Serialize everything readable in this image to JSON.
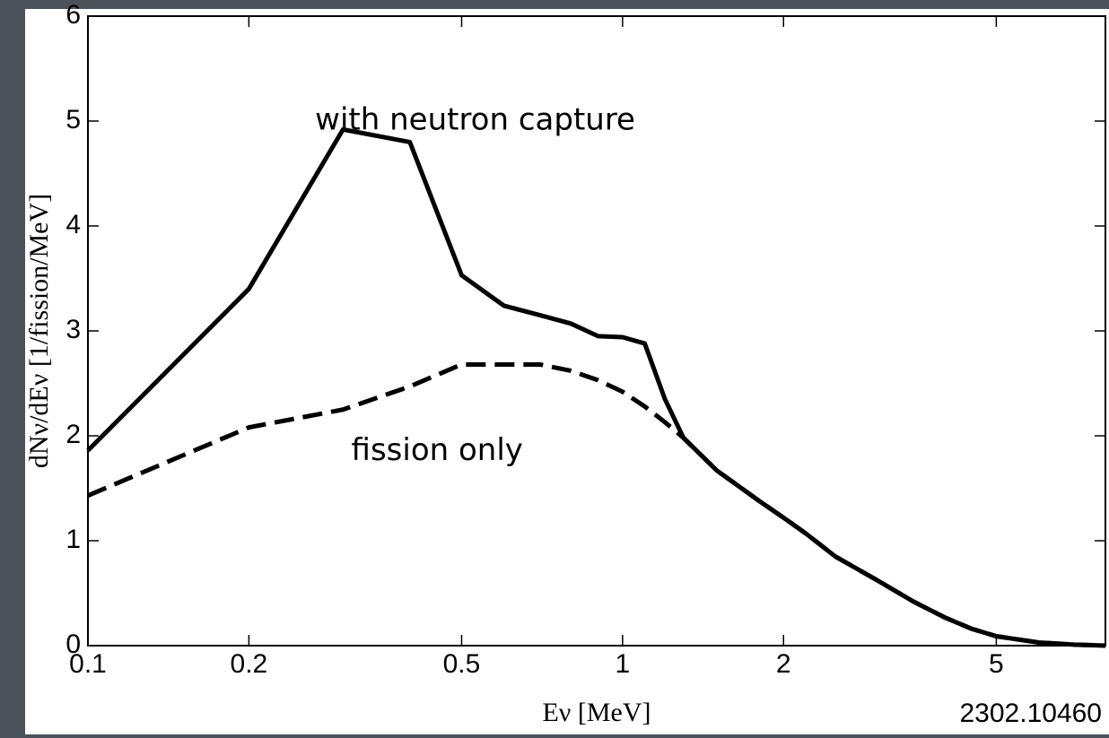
{
  "chart_data": {
    "type": "line",
    "x_label": "Eν [MeV]",
    "y_label": "dNν/dEν [1/fission/MeV]",
    "x": [
      0.1,
      0.2,
      0.3,
      0.4,
      0.5,
      0.6,
      0.7,
      0.8,
      0.9,
      1.0,
      1.1,
      1.2,
      1.3,
      1.5,
      1.8,
      2.0,
      2.2,
      2.5,
      3.0,
      3.5,
      4.0,
      4.5,
      5.0,
      6.0,
      7.0,
      8.0
    ],
    "series": [
      {
        "name": "with neutron capture",
        "color": "#000000",
        "dash": false,
        "values": [
          1.86,
          3.4,
          4.92,
          4.8,
          3.53,
          3.24,
          3.15,
          3.07,
          2.95,
          2.94,
          2.88,
          2.35,
          1.98,
          1.67,
          1.38,
          1.22,
          1.07,
          0.85,
          0.62,
          0.42,
          0.27,
          0.16,
          0.09,
          0.03,
          0.01,
          0.0
        ]
      },
      {
        "name": "fission only",
        "color": "#000000",
        "dash": true,
        "values": [
          1.43,
          2.08,
          2.25,
          2.47,
          2.68,
          2.68,
          2.68,
          2.62,
          2.53,
          2.42,
          2.28,
          2.13,
          1.98,
          1.67,
          1.38,
          1.22,
          1.07,
          0.85,
          0.62,
          0.42,
          0.27,
          0.16,
          0.09,
          0.03,
          0.01,
          0.0
        ]
      }
    ],
    "annotations": [
      {
        "text": "with neutron capture",
        "x": 0.53,
        "y": 5.0
      },
      {
        "text": "fission only",
        "x": 0.45,
        "y": 1.85
      }
    ],
    "xlim": [
      0.1,
      8
    ],
    "ylim": [
      0,
      6
    ],
    "xlog": true,
    "xticks": [
      0.1,
      0.2,
      0.5,
      1,
      2,
      5
    ],
    "yticks": [
      0,
      1,
      2,
      3,
      4,
      5,
      6
    ],
    "grid": false,
    "reference": "2302.10460"
  }
}
